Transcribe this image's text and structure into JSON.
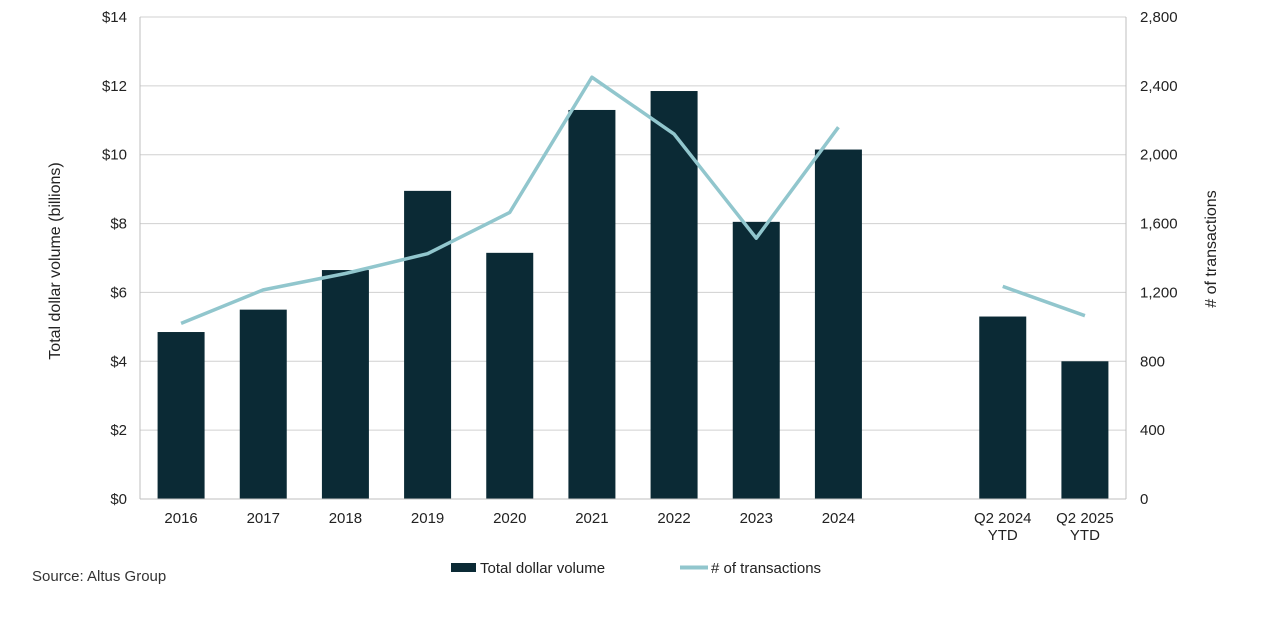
{
  "chart_data": {
    "type": "bar+line",
    "categories": [
      "2016",
      "2017",
      "2018",
      "2019",
      "2020",
      "2021",
      "2022",
      "2023",
      "2024",
      "",
      "Q2 2024\nYTD",
      "Q2 2025\nYTD"
    ],
    "series": [
      {
        "name": "Total dollar volume",
        "kind": "bar",
        "axis": "left",
        "color": "#0b2a35",
        "values": [
          4.85,
          5.5,
          6.65,
          8.95,
          7.15,
          11.3,
          11.85,
          8.05,
          10.15,
          null,
          5.3,
          4.0
        ]
      },
      {
        "name": "# of transactions",
        "kind": "line",
        "axis": "right",
        "color": "#91c6cd",
        "segments": [
          [
            0,
            8
          ],
          [
            10,
            11
          ]
        ],
        "values": [
          1020,
          1215,
          1310,
          1425,
          1665,
          2450,
          2120,
          1515,
          2160,
          null,
          1235,
          1065
        ]
      }
    ],
    "y_left": {
      "label": "Total dollar volume (billions)",
      "range": [
        0,
        14
      ],
      "ticks": [
        0,
        2,
        4,
        6,
        8,
        10,
        12,
        14
      ],
      "tick_labels": [
        "$0",
        "$2",
        "$4",
        "$6",
        "$8",
        "$10",
        "$12",
        "$14"
      ]
    },
    "y_right": {
      "label": "# of transactions",
      "range": [
        0,
        2800
      ],
      "ticks": [
        0,
        400,
        800,
        1200,
        1600,
        2000,
        2400,
        2800
      ],
      "tick_labels": [
        "0",
        "400",
        "800",
        "1,200",
        "1,600",
        "2,000",
        "2,400",
        "2,800"
      ]
    },
    "grid": true,
    "legend": {
      "position": "bottom",
      "entries": [
        "Total dollar volume",
        "# of transactions"
      ]
    }
  },
  "source": "Source:  Altus Group"
}
